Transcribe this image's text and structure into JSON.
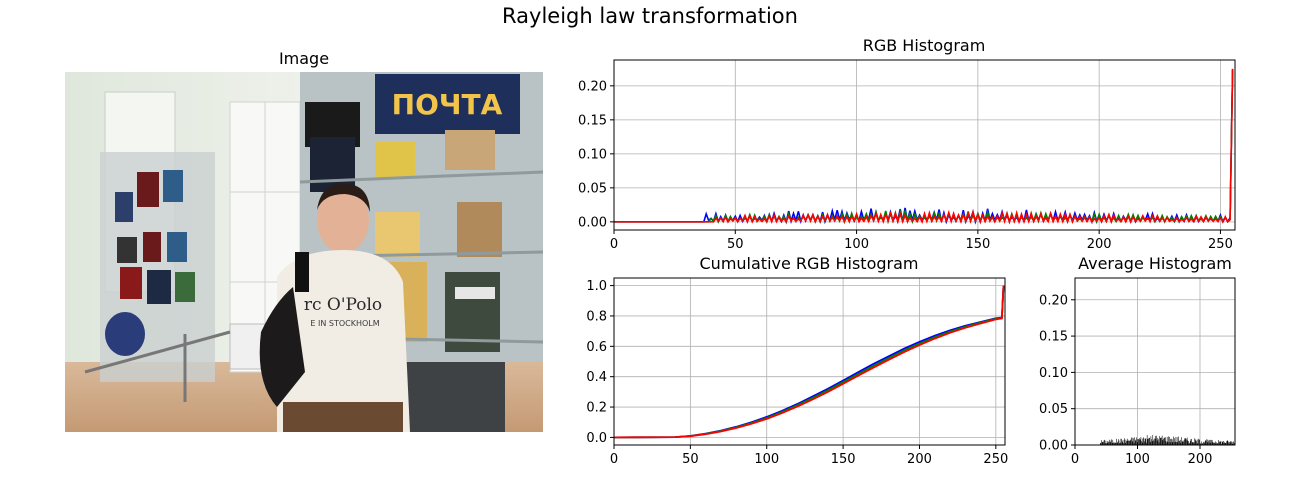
{
  "figure": {
    "title": "Rayleigh law transformation"
  },
  "image_panel": {
    "title": "Image",
    "photo_text": [
      "ПОЧТА",
      "rc O'Polo",
      "E IN STOCKHOLM"
    ]
  },
  "colors": {
    "red": "#ff0000",
    "green": "#008000",
    "blue": "#0000ff",
    "bar": "#000000",
    "grid": "#b0b0b0"
  },
  "chart_data": [
    {
      "type": "line",
      "title": "RGB Histogram",
      "xlabel": "",
      "ylabel": "",
      "xlim": [
        0,
        256
      ],
      "ylim": [
        -0.012,
        0.238
      ],
      "xticks": [
        0,
        50,
        100,
        150,
        200,
        250
      ],
      "yticks": [
        0.0,
        0.05,
        0.1,
        0.15,
        0.2
      ],
      "grid": true,
      "series_note_values": "per-level frequency; flat ~0 below 40, ~0.004-0.018 for 40-254, ~0.224 at 255",
      "series": [
        {
          "color": "blue",
          "start": 38,
          "base": 0.0075,
          "amp": 0.0075,
          "peak_at": 128,
          "last": 0.224
        },
        {
          "color": "green",
          "start": 40,
          "base": 0.0065,
          "amp": 0.006,
          "peak_at": 130,
          "last": 0.224
        },
        {
          "color": "red",
          "start": 42,
          "base": 0.0055,
          "amp": 0.005,
          "peak_at": 135,
          "last": 0.225
        }
      ]
    },
    {
      "type": "line",
      "title": "Cumulative RGB Histogram",
      "xlabel": "",
      "ylabel": "",
      "xlim": [
        0,
        256
      ],
      "ylim": [
        -0.05,
        1.05
      ],
      "xticks": [
        0,
        50,
        100,
        150,
        200,
        250
      ],
      "yticks": [
        0.0,
        0.2,
        0.4,
        0.6,
        0.8,
        1.0
      ],
      "grid": true,
      "x": [
        0,
        40,
        50,
        60,
        70,
        80,
        90,
        100,
        110,
        120,
        130,
        140,
        150,
        160,
        170,
        180,
        190,
        200,
        210,
        220,
        230,
        240,
        250,
        254,
        255
      ],
      "series": [
        {
          "color": "blue",
          "values": [
            0,
            0.002,
            0.01,
            0.025,
            0.045,
            0.07,
            0.1,
            0.135,
            0.175,
            0.22,
            0.27,
            0.32,
            0.375,
            0.43,
            0.485,
            0.535,
            0.585,
            0.63,
            0.67,
            0.705,
            0.735,
            0.76,
            0.785,
            0.79,
            1.0
          ]
        },
        {
          "color": "green",
          "values": [
            0,
            0.002,
            0.009,
            0.023,
            0.042,
            0.066,
            0.095,
            0.128,
            0.168,
            0.212,
            0.26,
            0.31,
            0.364,
            0.418,
            0.472,
            0.523,
            0.573,
            0.618,
            0.66,
            0.697,
            0.729,
            0.756,
            0.781,
            0.787,
            1.0
          ]
        },
        {
          "color": "red",
          "values": [
            0,
            0.002,
            0.008,
            0.021,
            0.039,
            0.062,
            0.09,
            0.122,
            0.16,
            0.203,
            0.25,
            0.3,
            0.353,
            0.407,
            0.46,
            0.512,
            0.562,
            0.608,
            0.651,
            0.689,
            0.722,
            0.75,
            0.777,
            0.783,
            1.0
          ]
        }
      ]
    },
    {
      "type": "bar",
      "title": "Average Histogram",
      "xlabel": "",
      "ylabel": "",
      "xlim": [
        0,
        256
      ],
      "ylim": [
        0,
        0.23
      ],
      "xticks": [
        0,
        100,
        200
      ],
      "yticks": [
        0.0,
        0.05,
        0.1,
        0.15,
        0.2
      ],
      "grid": true,
      "values_note": "per-level average frequency; ~0 below 40, ~0.002-0.012 for 40-254 peaking near 130, ~0.224 at 255 (clipped by view)",
      "start": 40,
      "base": 0.005,
      "amp": 0.006,
      "peak_at": 132
    }
  ],
  "tick_labels": {
    "rgb_x": [
      "0",
      "50",
      "100",
      "150",
      "200",
      "250"
    ],
    "rgb_y": [
      "0.00",
      "0.05",
      "0.10",
      "0.15",
      "0.20"
    ],
    "cum_x": [
      "0",
      "50",
      "100",
      "150",
      "200",
      "250"
    ],
    "cum_y": [
      "0.0",
      "0.2",
      "0.4",
      "0.6",
      "0.8",
      "1.0"
    ],
    "avg_x": [
      "0",
      "100",
      "200"
    ],
    "avg_y": [
      "0.00",
      "0.05",
      "0.10",
      "0.15",
      "0.20"
    ]
  }
}
